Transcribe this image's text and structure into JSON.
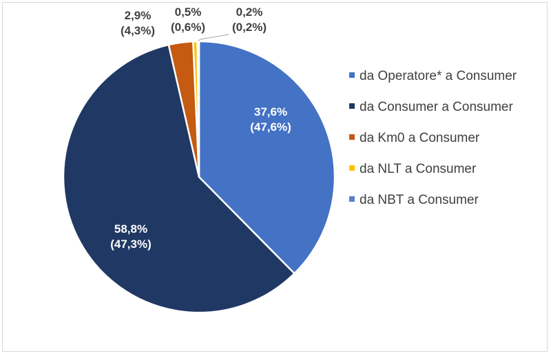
{
  "chart_data": {
    "type": "pie",
    "title": "",
    "start_angle_deg": 0,
    "direction": "clockwise",
    "legend_position": "right",
    "slices": [
      {
        "name": "da Operatore* a Consumer",
        "value": 37.6,
        "label": "37,6%",
        "sublabel": "(47,6%)",
        "color": "#4472C4",
        "label_color": "#ffffff"
      },
      {
        "name": "da Consumer a Consumer",
        "value": 58.8,
        "label": "58,8%",
        "sublabel": "(47,3%)",
        "color": "#203864",
        "label_color": "#ffffff"
      },
      {
        "name": "da Km0 a Consumer",
        "value": 2.9,
        "label": "2,9%",
        "sublabel": "(4,3%)",
        "color": "#C55A11",
        "label_color": "#404040"
      },
      {
        "name": "da NLT a Consumer",
        "value": 0.5,
        "label": "0,5%",
        "sublabel": "(0,6%)",
        "color": "#FFC000",
        "label_color": "#404040"
      },
      {
        "name": "da NBT a Consumer",
        "value": 0.2,
        "label": "0,2%",
        "sublabel": "(0,2%)",
        "color": "#5B7FC7",
        "label_color": "#404040"
      }
    ]
  }
}
